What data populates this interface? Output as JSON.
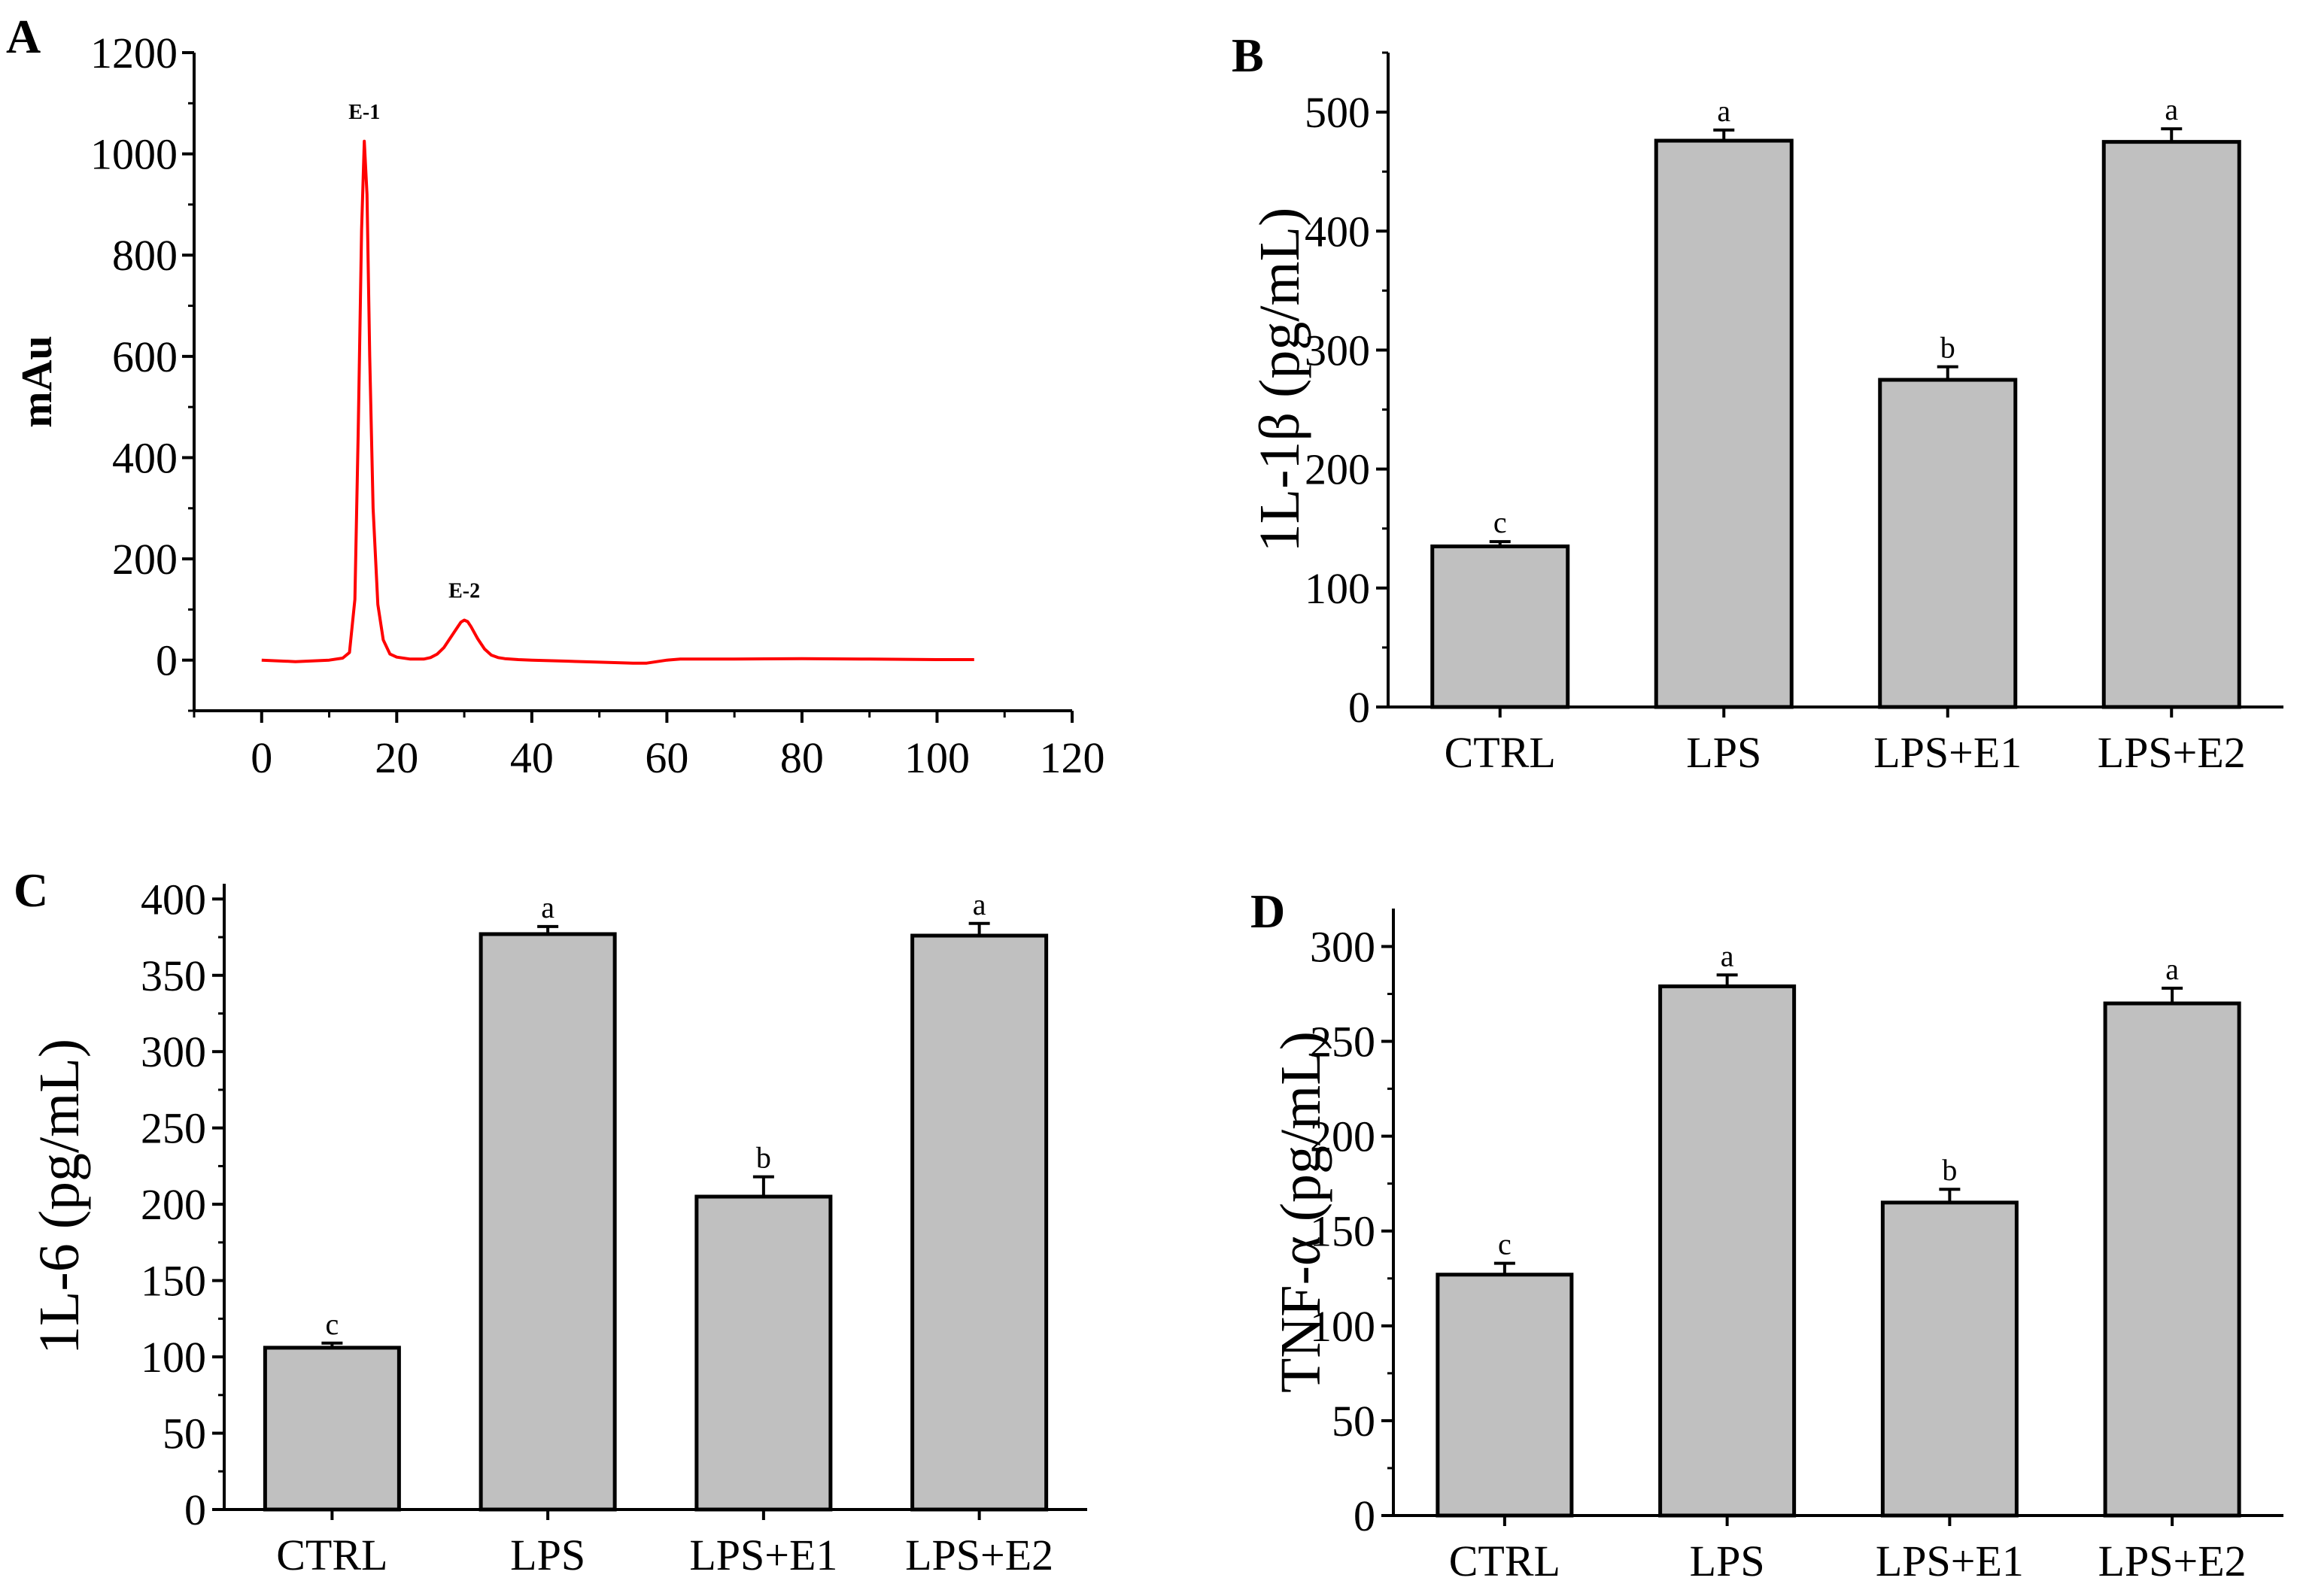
{
  "chart_data": [
    {
      "id": "A",
      "type": "line",
      "panel_label": "A",
      "title": "",
      "xlabel": "",
      "ylabel": "mAu",
      "xlim": [
        -10,
        120
      ],
      "ylim": [
        -100,
        1200
      ],
      "x_ticks": [
        0,
        20,
        40,
        60,
        80,
        100,
        120
      ],
      "y_ticks": [
        0,
        200,
        400,
        600,
        800,
        1000,
        1200
      ],
      "grid": false,
      "color": "#ff0000",
      "series": [
        {
          "name": "chromatogram",
          "x": [
            0,
            5,
            10,
            12,
            13,
            13.8,
            14.3,
            14.8,
            15.2,
            15.6,
            16,
            16.5,
            17.2,
            18,
            19,
            20,
            22,
            24,
            25,
            26,
            27,
            28,
            29,
            29.5,
            30,
            30.5,
            31,
            32,
            33,
            34,
            35,
            36,
            38,
            40,
            45,
            50,
            55,
            57,
            60,
            62,
            70,
            80,
            90,
            100,
            105.5
          ],
          "y": [
            0,
            -3,
            0,
            4,
            15,
            120,
            450,
            850,
            1025,
            920,
            600,
            300,
            110,
            40,
            12,
            6,
            2,
            2,
            5,
            12,
            25,
            45,
            65,
            75,
            79,
            76,
            66,
            42,
            22,
            10,
            5,
            3,
            1,
            0,
            -2,
            -4,
            -6,
            -6,
            0,
            2,
            2,
            3,
            2,
            1,
            1
          ]
        }
      ],
      "annotations": [
        {
          "text": "E-1",
          "x": 15.2,
          "y": 1025
        },
        {
          "text": "E-2",
          "x": 30,
          "y": 79
        }
      ]
    },
    {
      "id": "B",
      "type": "bar",
      "panel_label": "B",
      "categories": [
        "CTRL",
        "LPS",
        "LPS+E1",
        "LPS+E2"
      ],
      "values": [
        135,
        476,
        275,
        475
      ],
      "errors": [
        4,
        9,
        11,
        11
      ],
      "significance": [
        "c",
        "a",
        "b",
        "a"
      ],
      "title": "",
      "xlabel": "",
      "ylabel": "1L-1β (pg/mL)",
      "ylim": [
        0,
        550
      ],
      "y_ticks": [
        0,
        100,
        200,
        300,
        400,
        500
      ],
      "bar_color": "#c0c0c0",
      "grid": false
    },
    {
      "id": "C",
      "type": "bar",
      "panel_label": "C",
      "categories": [
        "CTRL",
        "LPS",
        "LPS+E1",
        "LPS+E2"
      ],
      "values": [
        106,
        377,
        205,
        376
      ],
      "errors": [
        3,
        5,
        13,
        8
      ],
      "significance": [
        "c",
        "a",
        "b",
        "a"
      ],
      "title": "",
      "xlabel": "",
      "ylabel": "1L-6 (pg/mL)",
      "ylim": [
        0,
        410
      ],
      "y_ticks": [
        0,
        50,
        100,
        150,
        200,
        250,
        300,
        350,
        400
      ],
      "bar_color": "#c0c0c0",
      "grid": false
    },
    {
      "id": "D",
      "type": "bar",
      "panel_label": "D",
      "categories": [
        "CTRL",
        "LPS",
        "LPS+E1",
        "LPS+E2"
      ],
      "values": [
        127,
        279,
        165,
        270
      ],
      "errors": [
        6,
        6,
        7,
        8
      ],
      "significance": [
        "c",
        "a",
        "b",
        "a"
      ],
      "title": "",
      "xlabel": "",
      "ylabel": "TNF-α (pg/mL)",
      "ylim": [
        0,
        320
      ],
      "y_ticks": [
        0,
        50,
        100,
        150,
        200,
        250,
        300
      ],
      "bar_color": "#c0c0c0",
      "grid": false
    }
  ]
}
